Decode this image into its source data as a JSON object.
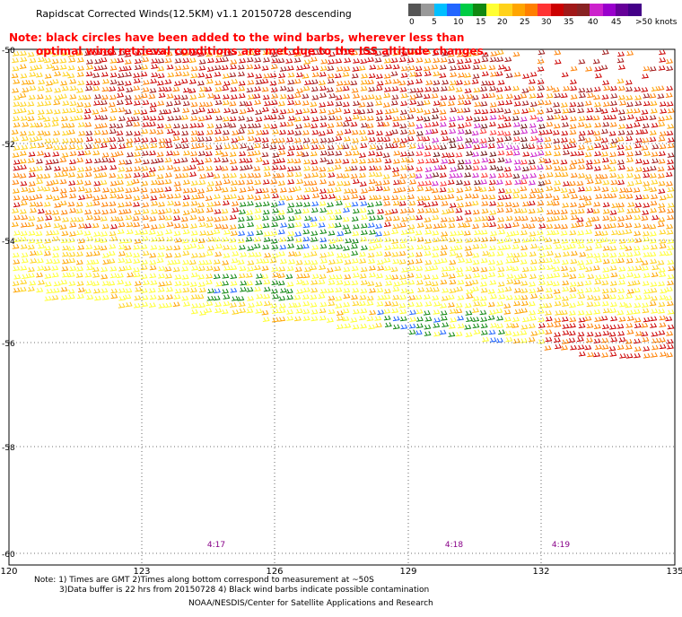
{
  "title": "Rapidscat Corrected Winds(12.5KM) v1.1 20150728 descending",
  "note_line1": "Note: black circles have been added to the wind barbs, wherever less than",
  "note_line2": "optimal wind retrieval conditions are met due to the ISS altitude changes.",
  "colorbar": {
    "labels": [
      "0",
      "5",
      "10",
      "15",
      "20",
      "25",
      "30",
      "35",
      "40",
      "45",
      ">50 knots"
    ],
    "colors": [
      "#555555",
      "#999999",
      "#00bfff",
      "#2266ff",
      "#00cc44",
      "#118811",
      "#ffff33",
      "#ffd21a",
      "#ffa500",
      "#ff7f00",
      "#ff3333",
      "#cc0000",
      "#a01818",
      "#882222",
      "#cc22cc",
      "#9900cc",
      "#660099",
      "#440088"
    ]
  },
  "map": {
    "lat_labels": [
      "-50",
      "-52",
      "-54",
      "-56",
      "-58",
      "-60"
    ],
    "lon_labels": [
      "120",
      "123",
      "126",
      "129",
      "132",
      "135"
    ],
    "time_labels": [
      "4:17",
      "4:18",
      "4:19"
    ],
    "time_color": "#880088"
  },
  "footer": {
    "line1": "Note: 1) Times are GMT 2)Times along bottom correspond to measurement at ~50S",
    "line2": "3)Data buffer is 22 hrs from 20150728 4) Black wind barbs indicate possible contamination",
    "line3": "NOAA/NESDIS/Center for Satellite Applications and Research"
  }
}
